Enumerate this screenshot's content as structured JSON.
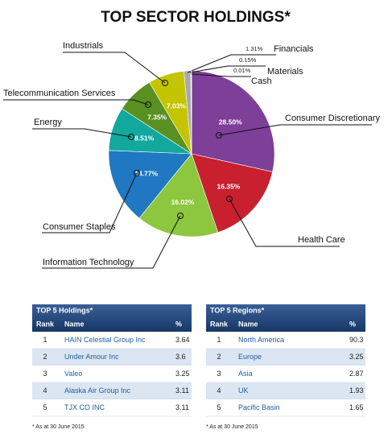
{
  "chart_data": {
    "type": "pie",
    "title": "TOP SECTOR HOLDINGS*",
    "categories": [
      "Consumer Discretionary",
      "Health Care",
      "Information Technology",
      "Consumer Staples",
      "Energy",
      "Telecommunication Services",
      "Industrials",
      "Financials",
      "Materials",
      "Cash"
    ],
    "values": [
      28.5,
      16.35,
      16.02,
      14.77,
      8.51,
      7.35,
      7.03,
      1.31,
      0.15,
      0.01
    ],
    "value_labels": [
      "28.50%",
      "16.35%",
      "16.02%",
      "14.77%",
      "8.51%",
      "7.35%",
      "7.03%",
      "1.31%",
      "0.15%",
      "0.01%"
    ],
    "colors": [
      "#7d3f98",
      "#c8202f",
      "#8dc63f",
      "#1f78c1",
      "#12a89d",
      "#5a8f22",
      "#c4c400",
      "#a7a9ac",
      "#d9d9d9",
      "#d21f5a"
    ]
  },
  "tables": [
    {
      "title": "TOP 5 Holdings*",
      "columns": [
        "Rank",
        "Name",
        "%"
      ],
      "rows": [
        [
          1,
          "HAIN Celestial Group Inc",
          3.64
        ],
        [
          2,
          "Under Amour Inc",
          3.6
        ],
        [
          3,
          "Valeo",
          3.25
        ],
        [
          4,
          "Alaska Air Group Inc",
          3.11
        ],
        [
          5,
          "TJX CO INC",
          3.11
        ]
      ],
      "footnote": "* As at 30 June 2015"
    },
    {
      "title": "TOP 5 Regions*",
      "columns": [
        "Rank",
        "Name",
        "%"
      ],
      "rows": [
        [
          1,
          "North America",
          90.3
        ],
        [
          2,
          "Europe",
          3.25
        ],
        [
          3,
          "Asia",
          2.87
        ],
        [
          4,
          "UK",
          1.93
        ],
        [
          5,
          "Pacific Basin",
          1.65
        ]
      ],
      "footnote": "* As at 30 June 2015"
    }
  ]
}
